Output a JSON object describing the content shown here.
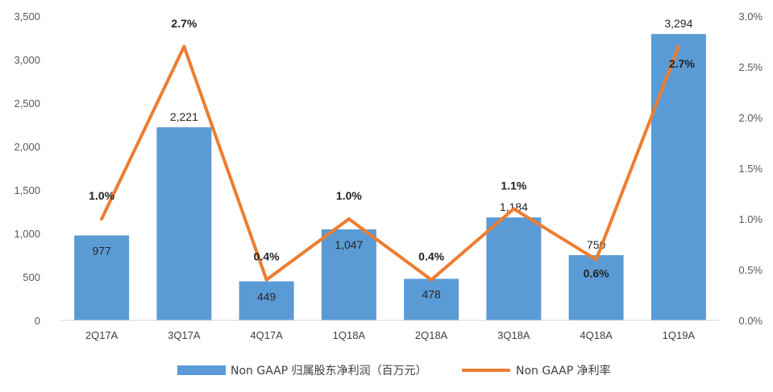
{
  "chart_data": {
    "type": "bar",
    "categories": [
      "2Q17A",
      "3Q17A",
      "4Q17A",
      "1Q18A",
      "2Q18A",
      "3Q18A",
      "4Q18A",
      "1Q19A"
    ],
    "series": [
      {
        "name": "Non GAAP 归属股东净利润（百万元）",
        "type": "bar",
        "axis": "left",
        "color": "#5B9BD5",
        "values": [
          977,
          2221,
          449,
          1047,
          478,
          1184,
          750,
          3294
        ],
        "labels": [
          "977",
          "2,221",
          "449",
          "1,047",
          "478",
          "1,184",
          "750",
          "3,294"
        ]
      },
      {
        "name": "Non GAAP 净利率",
        "type": "line",
        "axis": "right",
        "color": "#ED7D31",
        "values": [
          1.0,
          2.7,
          0.4,
          1.0,
          0.4,
          1.1,
          0.6,
          2.7
        ],
        "labels": [
          "1.0%",
          "2.7%",
          "0.4%",
          "1.0%",
          "0.4%",
          "1.1%",
          "0.6%",
          "2.7%"
        ]
      }
    ],
    "y_left": {
      "ylim": [
        0,
        3500
      ],
      "ticks": [
        0,
        500,
        1000,
        1500,
        2000,
        2500,
        3000,
        3500
      ],
      "tick_labels": [
        "0",
        "500",
        "1,000",
        "1,500",
        "2,000",
        "2,500",
        "3,000",
        "3,500"
      ]
    },
    "y_right": {
      "ylim": [
        0,
        3.0
      ],
      "ticks": [
        0,
        0.5,
        1.0,
        1.5,
        2.0,
        2.5,
        3.0
      ],
      "tick_labels": [
        "0.0%",
        "0.5%",
        "1.0%",
        "1.5%",
        "2.0%",
        "2.5%",
        "3.0%"
      ]
    },
    "title": "",
    "xlabel": "",
    "grid": false,
    "legend": "bottom"
  }
}
